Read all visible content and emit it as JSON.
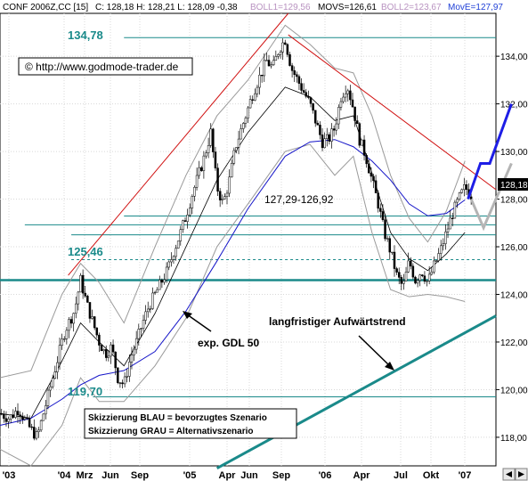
{
  "header": {
    "symbol": "CONF 2006Z,CC [15]",
    "ohlc": "C: 128,18 H: 128,21 L: 128,09 -0,38",
    "boll1": "BOLL1=129,56",
    "movs": "MOVS=126,61",
    "boll2": "BOLL2=123,67",
    "move": "MovE=127,97"
  },
  "copyright": "© http://www.godmode-trader.de",
  "last_price_tag": "128,18",
  "annotations": {
    "range_label": "127,29-126,92",
    "gdl_label": "exp. GDL 50",
    "trend_label": "langfristiger Aufwärtstrend",
    "level_high": "134,78",
    "level_mid": "125,46",
    "level_low": "119,70",
    "legend_blue": "Skizzierung BLAU = bevorzugtes Szenario",
    "legend_grey": "Skizzierung GRAU = Alternativszenario"
  },
  "colors": {
    "background": "#ffffff",
    "grid": "#d8d8d8",
    "candle": "#000000",
    "bollinger": "#9a9a9a",
    "movs": "#000000",
    "ema": "#1414c8",
    "support": "#1a8a8a",
    "resistance": "#d01010",
    "scenario_blue": "#1e1ee6",
    "scenario_grey": "#b4b4b4",
    "arrow": "#000000",
    "header_blue": "#1f3fd6",
    "header_pink": "#d7a8d8",
    "price_tag_bg": "#000000"
  },
  "chart_data": {
    "type": "candlestick",
    "title": "CONF 2006Z,CC [15]",
    "ylim": [
      116.8,
      135.8
    ],
    "yticks": [
      118,
      120,
      122,
      124,
      126,
      128,
      130,
      132,
      134
    ],
    "ytick_labels": [
      "118,00",
      "120,00",
      "122,00",
      "124,00",
      "126,00",
      "128,00",
      "130,00",
      "132,00",
      "134,00"
    ],
    "xticks": [
      "'03",
      "'04",
      "Mrz",
      "Jun",
      "Sep",
      "'05",
      "Apr",
      "Jun",
      "Sep",
      "'06",
      "Apr",
      "Jul",
      "Okt",
      "'07"
    ],
    "close_path": [
      [
        0,
        119.0
      ],
      [
        3,
        118.8
      ],
      [
        6,
        119.2
      ],
      [
        9,
        118.5
      ],
      [
        12,
        118.0
      ],
      [
        15,
        119.5
      ],
      [
        18,
        121.0
      ],
      [
        21,
        122.5
      ],
      [
        24,
        123.3
      ],
      [
        26,
        124.6
      ],
      [
        28,
        123.6
      ],
      [
        30,
        122.8
      ],
      [
        32,
        122.0
      ],
      [
        34,
        121.5
      ],
      [
        36,
        121.8
      ],
      [
        38,
        120.5
      ],
      [
        40,
        120.2
      ],
      [
        42,
        121.3
      ],
      [
        44,
        122.0
      ],
      [
        46,
        122.8
      ],
      [
        48,
        123.5
      ],
      [
        50,
        124.0
      ],
      [
        52,
        124.5
      ],
      [
        54,
        125.0
      ],
      [
        56,
        125.8
      ],
      [
        58,
        126.5
      ],
      [
        60,
        127.3
      ],
      [
        62,
        128.2
      ],
      [
        64,
        129.0
      ],
      [
        66,
        129.8
      ],
      [
        68,
        130.8
      ],
      [
        70,
        128.5
      ],
      [
        72,
        127.8
      ],
      [
        74,
        128.8
      ],
      [
        76,
        130.2
      ],
      [
        78,
        131.0
      ],
      [
        80,
        131.8
      ],
      [
        82,
        132.6
      ],
      [
        84,
        133.2
      ],
      [
        86,
        133.8
      ],
      [
        88,
        133.5
      ],
      [
        90,
        134.3
      ],
      [
        92,
        134.7
      ],
      [
        94,
        133.5
      ],
      [
        96,
        133.0
      ],
      [
        98,
        132.5
      ],
      [
        100,
        132.0
      ],
      [
        102,
        131.2
      ],
      [
        104,
        130.4
      ],
      [
        106,
        130.5
      ],
      [
        108,
        131.0
      ],
      [
        110,
        132.3
      ],
      [
        112,
        132.8
      ],
      [
        114,
        131.8
      ],
      [
        116,
        130.5
      ],
      [
        118,
        129.8
      ],
      [
        120,
        128.8
      ],
      [
        122,
        127.8
      ],
      [
        124,
        126.6
      ],
      [
        126,
        125.8
      ],
      [
        128,
        124.8
      ],
      [
        130,
        124.3
      ],
      [
        132,
        125.4
      ],
      [
        134,
        124.6
      ],
      [
        136,
        125.0
      ],
      [
        138,
        124.5
      ],
      [
        140,
        125.2
      ],
      [
        142,
        125.8
      ],
      [
        144,
        126.6
      ],
      [
        146,
        127.4
      ],
      [
        148,
        128.0
      ],
      [
        150,
        128.5
      ],
      [
        152,
        128.18
      ]
    ],
    "boll_upper": [
      [
        0,
        120.5
      ],
      [
        10,
        120.8
      ],
      [
        20,
        124.0
      ],
      [
        26,
        125.3
      ],
      [
        32,
        124.5
      ],
      [
        40,
        122.8
      ],
      [
        50,
        126.0
      ],
      [
        60,
        129.0
      ],
      [
        70,
        131.5
      ],
      [
        80,
        133.0
      ],
      [
        92,
        135.3
      ],
      [
        100,
        134.5
      ],
      [
        108,
        133.5
      ],
      [
        114,
        133.3
      ],
      [
        120,
        131.5
      ],
      [
        126,
        129.0
      ],
      [
        132,
        127.2
      ],
      [
        138,
        126.2
      ],
      [
        144,
        127.5
      ],
      [
        150,
        129.6
      ]
    ],
    "boll_lower": [
      [
        0,
        117.5
      ],
      [
        10,
        116.8
      ],
      [
        20,
        118.5
      ],
      [
        26,
        120.5
      ],
      [
        32,
        119.5
      ],
      [
        40,
        119.5
      ],
      [
        50,
        121.0
      ],
      [
        60,
        123.0
      ],
      [
        70,
        126.0
      ],
      [
        80,
        127.8
      ],
      [
        92,
        130.0
      ],
      [
        100,
        130.3
      ],
      [
        108,
        129.0
      ],
      [
        114,
        129.8
      ],
      [
        120,
        126.6
      ],
      [
        126,
        124.2
      ],
      [
        132,
        123.9
      ],
      [
        138,
        124.0
      ],
      [
        144,
        123.9
      ],
      [
        150,
        123.7
      ]
    ],
    "movs": [
      [
        0,
        119.0
      ],
      [
        10,
        118.8
      ],
      [
        20,
        121.2
      ],
      [
        26,
        122.8
      ],
      [
        32,
        122.0
      ],
      [
        40,
        121.0
      ],
      [
        50,
        123.2
      ],
      [
        60,
        126.0
      ],
      [
        70,
        128.8
      ],
      [
        80,
        130.8
      ],
      [
        92,
        132.7
      ],
      [
        100,
        132.3
      ],
      [
        108,
        131.3
      ],
      [
        114,
        131.5
      ],
      [
        120,
        129.1
      ],
      [
        126,
        126.6
      ],
      [
        132,
        125.5
      ],
      [
        138,
        125.0
      ],
      [
        144,
        125.7
      ],
      [
        150,
        126.6
      ]
    ],
    "ema50": [
      [
        0,
        118.5
      ],
      [
        10,
        118.8
      ],
      [
        20,
        119.6
      ],
      [
        26,
        120.2
      ],
      [
        32,
        120.6
      ],
      [
        40,
        120.8
      ],
      [
        50,
        121.6
      ],
      [
        60,
        123.3
      ],
      [
        70,
        125.4
      ],
      [
        80,
        127.6
      ],
      [
        92,
        129.8
      ],
      [
        100,
        130.4
      ],
      [
        108,
        130.5
      ],
      [
        114,
        130.2
      ],
      [
        120,
        129.6
      ],
      [
        126,
        128.8
      ],
      [
        132,
        127.8
      ],
      [
        138,
        127.3
      ],
      [
        144,
        127.4
      ],
      [
        150,
        127.97
      ]
    ],
    "horizontal_levels": [
      {
        "label": "134,78",
        "value": 134.78
      },
      {
        "value": 127.29
      },
      {
        "value": 126.92
      },
      {
        "value": 126.5
      },
      {
        "label": "125,46",
        "value": 125.46
      },
      {
        "value": 124.6
      },
      {
        "label": "119,70",
        "value": 119.7
      }
    ],
    "resistance_top": [
      [
        22,
        124.8
      ],
      [
        93,
        135.8
      ]
    ],
    "resistance_down": [
      [
        93,
        134.9
      ],
      [
        160,
        128.4
      ]
    ],
    "uptrend": [
      [
        70,
        116.7
      ],
      [
        160,
        123.1
      ]
    ],
    "scenario_blue": [
      [
        151,
        128.0
      ],
      [
        155,
        129.5
      ],
      [
        158,
        129.5
      ],
      [
        165,
        132.0
      ]
    ],
    "scenario_grey": [
      [
        152,
        128.0
      ],
      [
        156,
        126.8
      ],
      [
        165,
        129.5
      ]
    ]
  }
}
